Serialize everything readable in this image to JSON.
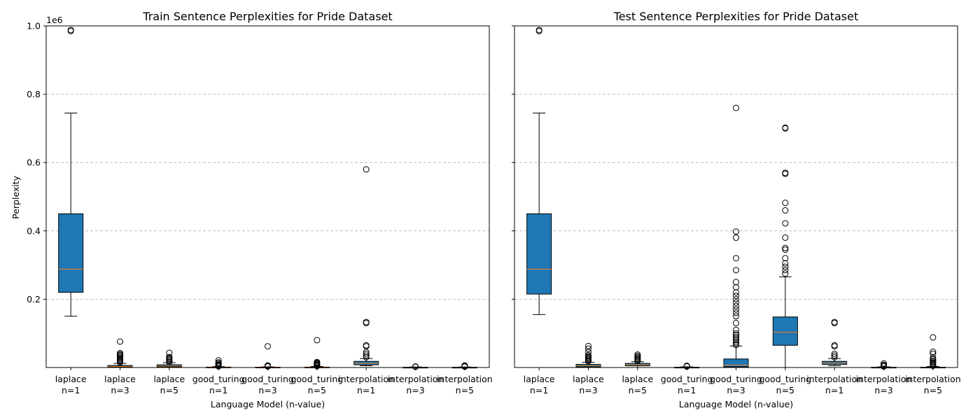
{
  "chart_data": [
    {
      "type": "box",
      "title": "Train Sentence Perplexities for Pride Dataset",
      "xlabel": "Language Model (n-value)",
      "ylabel": "Perplexity",
      "y_offset_label": "1e6",
      "ylim": [
        0,
        1000000
      ],
      "yticks": [
        0.2,
        0.4,
        0.6,
        0.8,
        1.0
      ],
      "grid": "y-dashed",
      "box_color": "#1f77b4",
      "median_color": "#ff7f0e",
      "categories": [
        {
          "line1": "laplace",
          "line2": "n=1"
        },
        {
          "line1": "laplace",
          "line2": "n=3"
        },
        {
          "line1": "laplace",
          "line2": "n=5"
        },
        {
          "line1": "good_turing",
          "line2": "n=1"
        },
        {
          "line1": "good_turing",
          "line2": "n=3"
        },
        {
          "line1": "good_turing",
          "line2": "n=5"
        },
        {
          "line1": "interpolation",
          "line2": "n=1"
        },
        {
          "line1": "interpolation",
          "line2": "n=3"
        },
        {
          "line1": "interpolation",
          "line2": "n=5"
        }
      ],
      "boxes": [
        {
          "whislo": 150000,
          "q1": 220000,
          "med": 288000,
          "q3": 450000,
          "whishi": 745000,
          "fliers": [
            985000,
            988000
          ]
        },
        {
          "whislo": 0,
          "q1": 1000,
          "med": 3000,
          "q3": 6000,
          "whishi": 12000,
          "fliers": [
            15000,
            18000,
            21000,
            24000,
            27000,
            30000,
            33000,
            36000,
            39000,
            42000,
            76000
          ]
        },
        {
          "whislo": 0,
          "q1": 2000,
          "med": 4000,
          "q3": 8000,
          "whishi": 14000,
          "fliers": [
            16000,
            19000,
            22000,
            25000,
            28000,
            31000,
            43000
          ]
        },
        {
          "whislo": 0,
          "q1": 200,
          "med": 500,
          "q3": 1200,
          "whishi": 2500,
          "fliers": [
            3500,
            5000,
            7000,
            9000,
            12000,
            15000,
            21000
          ]
        },
        {
          "whislo": 0,
          "q1": 200,
          "med": 400,
          "q3": 1000,
          "whishi": 2000,
          "fliers": [
            3000,
            4000,
            5000,
            6000,
            62000
          ]
        },
        {
          "whislo": 0,
          "q1": 200,
          "med": 500,
          "q3": 1200,
          "whishi": 3000,
          "fliers": [
            4000,
            6000,
            8000,
            10000,
            12000,
            14000,
            16000,
            80000
          ]
        },
        {
          "whislo": 5000,
          "q1": 8000,
          "med": 12000,
          "q3": 18000,
          "whishi": 26000,
          "fliers": [
            30000,
            35000,
            40000,
            45000,
            62000,
            65000,
            130000,
            133000,
            580000
          ]
        },
        {
          "whislo": 0,
          "q1": 100,
          "med": 300,
          "q3": 700,
          "whishi": 1500,
          "fliers": [
            2000,
            3000
          ]
        },
        {
          "whislo": 0,
          "q1": 100,
          "med": 300,
          "q3": 700,
          "whishi": 1500,
          "fliers": [
            2500,
            4000,
            6000
          ]
        }
      ]
    },
    {
      "type": "box",
      "title": "Test Sentence Perplexities for Pride Dataset",
      "xlabel": "Language Model (n-value)",
      "ylabel": "",
      "ylim": [
        0,
        1000000
      ],
      "grid": "y-dashed",
      "box_color": "#1f77b4",
      "median_color": "#ff7f0e",
      "categories": [
        {
          "line1": "laplace",
          "line2": "n=1"
        },
        {
          "line1": "laplace",
          "line2": "n=3"
        },
        {
          "line1": "laplace",
          "line2": "n=5"
        },
        {
          "line1": "good_turing",
          "line2": "n=1"
        },
        {
          "line1": "good_turing",
          "line2": "n=3"
        },
        {
          "line1": "good_turing",
          "line2": "n=5"
        },
        {
          "line1": "interpolation",
          "line2": "n=1"
        },
        {
          "line1": "interpolation",
          "line2": "n=3"
        },
        {
          "line1": "interpolation",
          "line2": "n=5"
        }
      ],
      "boxes": [
        {
          "whislo": 155000,
          "q1": 215000,
          "med": 288000,
          "q3": 450000,
          "whishi": 745000,
          "fliers": [
            985000,
            988000
          ]
        },
        {
          "whislo": 0,
          "q1": 2000,
          "med": 5000,
          "q3": 9000,
          "whishi": 15000,
          "fliers": [
            18000,
            21000,
            24000,
            27000,
            30000,
            33000,
            36000,
            45000,
            55000,
            63000
          ]
        },
        {
          "whislo": 0,
          "q1": 5000,
          "med": 8000,
          "q3": 12000,
          "whishi": 17000,
          "fliers": [
            19000,
            22000,
            25000,
            28000,
            31000,
            34000,
            38000
          ]
        },
        {
          "whislo": 0,
          "q1": 100,
          "med": 300,
          "q3": 800,
          "whishi": 2000,
          "fliers": [
            3000,
            5000
          ]
        },
        {
          "whislo": 0,
          "q1": 2000,
          "med": 7000,
          "q3": 25000,
          "whishi": 63000,
          "fliers": [
            66000,
            70000,
            75000,
            80000,
            85000,
            90000,
            95000,
            100000,
            110000,
            130000,
            150000,
            160000,
            170000,
            180000,
            190000,
            200000,
            210000,
            220000,
            235000,
            250000,
            285000,
            320000,
            380000,
            398000,
            760000
          ]
        },
        {
          "whislo": 0,
          "q1": 65000,
          "med": 103000,
          "q3": 148000,
          "whishi": 265000,
          "fliers": [
            275000,
            285000,
            295000,
            305000,
            320000,
            345000,
            350000,
            380000,
            422000,
            460000,
            482000,
            567000,
            570000,
            700000,
            702000
          ]
        },
        {
          "whislo": 5000,
          "q1": 9000,
          "med": 13000,
          "q3": 18000,
          "whishi": 26000,
          "fliers": [
            30000,
            35000,
            40000,
            62000,
            65000,
            130000,
            133000
          ]
        },
        {
          "whislo": 0,
          "q1": 100,
          "med": 300,
          "q3": 800,
          "whishi": 2000,
          "fliers": [
            3000,
            5000,
            8000,
            12000
          ]
        },
        {
          "whislo": 0,
          "q1": 100,
          "med": 300,
          "q3": 900,
          "whishi": 3000,
          "fliers": [
            5000,
            8000,
            11000,
            14000,
            17000,
            20000,
            24000,
            28000,
            40000,
            46000,
            88000
          ]
        }
      ]
    }
  ]
}
